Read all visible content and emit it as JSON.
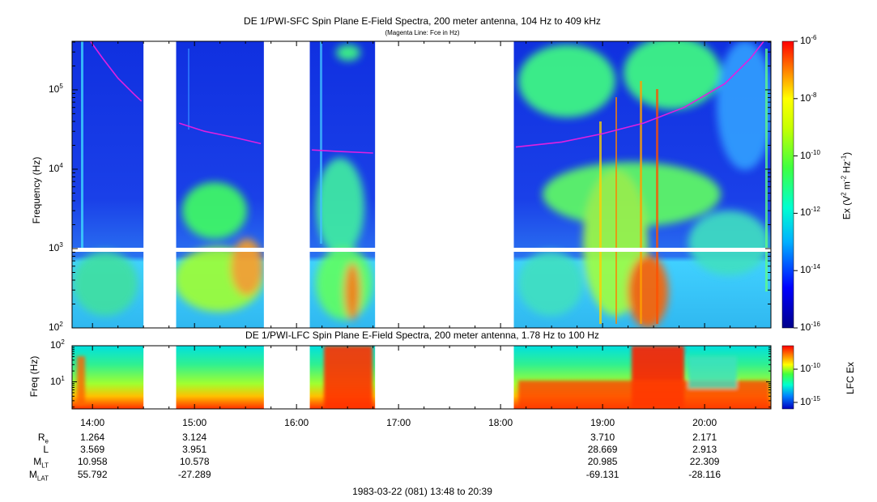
{
  "main_panel": {
    "title": "DE 1/PWI-SFC  Spin Plane E-Field Spectra, 200 meter antenna, 104 Hz to 409 kHz",
    "subtitle": "(Magenta Line: Fce in Hz)",
    "ylabel": "Frequency (Hz)",
    "yticks": [
      {
        "base": "10",
        "exp": "3",
        "value": 1000
      },
      {
        "base": "10",
        "exp": "4",
        "value": 10000
      },
      {
        "base": "10",
        "exp": "5",
        "value": 100000
      }
    ],
    "ymin_label": "10",
    "ymin_exp": "2",
    "colorbar_label": "Ex (V",
    "colorbar_label_exp1": "2",
    "colorbar_label_mid": " m",
    "colorbar_label_exp2": "-2",
    "colorbar_label_mid2": " Hz",
    "colorbar_label_exp3": "-1",
    "colorbar_label_end": ")",
    "colorbar_ticks": [
      {
        "base": "10",
        "exp": "-6"
      },
      {
        "base": "10",
        "exp": "-8"
      },
      {
        "base": "10",
        "exp": "-10"
      },
      {
        "base": "10",
        "exp": "-12"
      },
      {
        "base": "10",
        "exp": "-14"
      },
      {
        "base": "10",
        "exp": "-16"
      }
    ]
  },
  "lower_panel": {
    "title": "DE 1/PWI-LFC  Spin Plane E-Field Spectra, 200 meter antenna, 1.78 Hz to 100 Hz",
    "ylabel": "Freq (Hz)",
    "yticks": [
      {
        "base": "10",
        "exp": "2"
      },
      {
        "base": "10",
        "exp": "1"
      }
    ],
    "colorbar_label": "LFC Ex",
    "colorbar_ticks": [
      {
        "base": "10",
        "exp": "-10"
      },
      {
        "base": "10",
        "exp": "-15"
      }
    ]
  },
  "chart_data": {
    "type": "heatmap",
    "x_unit": "UT hours",
    "xlim": [
      13.8,
      20.65
    ],
    "x_ticks": [
      {
        "label": "14:00",
        "value": 14.0
      },
      {
        "label": "15:00",
        "value": 15.0
      },
      {
        "label": "16:00",
        "value": 16.0
      },
      {
        "label": "17:00",
        "value": 17.0
      },
      {
        "label": "18:00",
        "value": 18.0
      },
      {
        "label": "19:00",
        "value": 19.0
      },
      {
        "label": "20:00",
        "value": 20.0
      }
    ],
    "main_ylim_hz": [
      100,
      409000
    ],
    "lower_ylim_hz": [
      1.78,
      100
    ],
    "data_gaps_ut": [
      [
        14.5,
        14.82
      ],
      [
        15.68,
        16.13
      ],
      [
        16.77,
        18.13
      ]
    ],
    "fce_line_segments": [
      {
        "x": [
          13.98,
          14.1,
          14.25,
          14.4,
          14.48
        ],
        "y_hz": [
          409000,
          250000,
          140000,
          90000,
          72000
        ]
      },
      {
        "x": [
          14.85,
          15.1,
          15.4,
          15.65
        ],
        "y_hz": [
          38000,
          30000,
          25000,
          21000
        ]
      },
      {
        "x": [
          16.15,
          16.4,
          16.75
        ],
        "y_hz": [
          17500,
          16800,
          16000
        ]
      },
      {
        "x": [
          18.15,
          18.6,
          19.0,
          19.4,
          19.8,
          20.2,
          20.45,
          20.58
        ],
        "y_hz": [
          19000,
          22000,
          28000,
          38000,
          60000,
          120000,
          250000,
          409000
        ]
      }
    ]
  },
  "ephemeris": {
    "rows": [
      {
        "label": "R",
        "sub": "e",
        "values": [
          "1.264",
          "3.124",
          "",
          "",
          "",
          "3.710",
          "2.171"
        ]
      },
      {
        "label": "L",
        "sub": "",
        "values": [
          "3.569",
          "3.951",
          "",
          "",
          "",
          "28.669",
          "2.913"
        ]
      },
      {
        "label": "M",
        "sub": "LT",
        "values": [
          "10.958",
          "10.578",
          "",
          "",
          "",
          "20.985",
          "22.309"
        ]
      },
      {
        "label": "M",
        "sub": "LAT",
        "values": [
          "55.792",
          "-27.289",
          "",
          "",
          "",
          "-69.131",
          "-28.116"
        ]
      }
    ],
    "footer": "1983-03-22 (081) 13:48 to 20:39"
  }
}
